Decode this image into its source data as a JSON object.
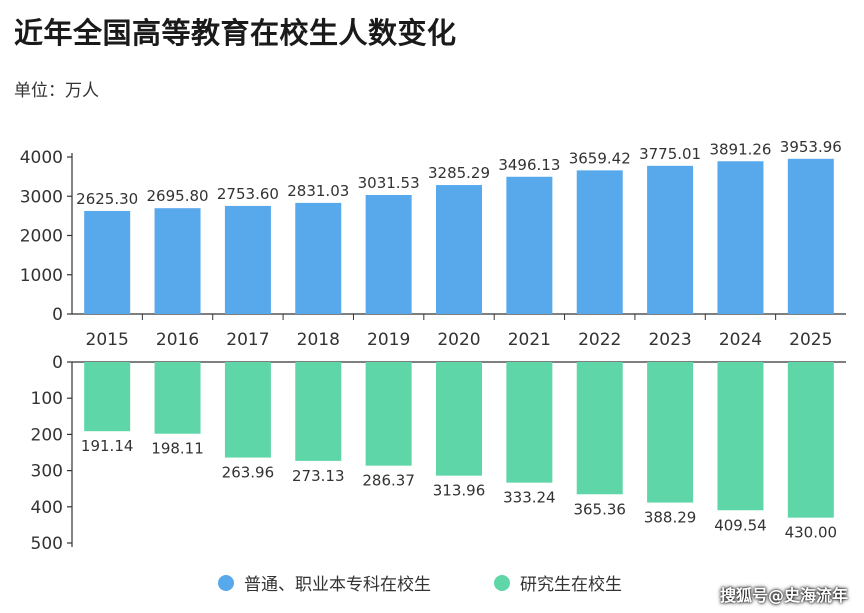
{
  "title": "近年全国高等教育在校生人数变化",
  "unit_label": "单位：万人",
  "credit": "搜狐号@史海流年",
  "colors": {
    "series1": "#58a8ec",
    "series2": "#5fd6a8",
    "axis": "#333333"
  },
  "chart_data": [
    {
      "type": "bar",
      "categories": [
        "2015",
        "2016",
        "2017",
        "2018",
        "2019",
        "2020",
        "2021",
        "2022",
        "2023",
        "2024",
        "2025"
      ],
      "series": [
        {
          "name": "普通、职业本专科在校生",
          "values": [
            2625.3,
            2695.8,
            2753.6,
            2831.03,
            3031.53,
            3285.29,
            3496.13,
            3659.42,
            3775.01,
            3891.26,
            3953.96
          ],
          "labels": [
            "2625.30",
            "2695.80",
            "2753.60",
            "2831.03",
            "3031.53",
            "3285.29",
            "3496.13",
            "3659.42",
            "3775.01",
            "3891.26",
            "3953.96"
          ]
        }
      ],
      "ylim": [
        0,
        4000
      ],
      "yticks": [
        "0",
        "1000",
        "2000",
        "3000",
        "4000"
      ],
      "grid": false
    },
    {
      "type": "bar",
      "orientation": "downward",
      "categories": [
        "2015",
        "2016",
        "2017",
        "2018",
        "2019",
        "2020",
        "2021",
        "2022",
        "2023",
        "2024",
        "2025"
      ],
      "series": [
        {
          "name": "研究生在校生",
          "values": [
            191.14,
            198.11,
            263.96,
            273.13,
            286.37,
            313.96,
            333.24,
            365.36,
            388.29,
            409.54,
            430.0
          ],
          "labels": [
            "191.14",
            "198.11",
            "263.96",
            "273.13",
            "286.37",
            "313.96",
            "333.24",
            "365.36",
            "388.29",
            "409.54",
            "430.00"
          ]
        }
      ],
      "ylim": [
        0,
        500
      ],
      "yticks": [
        "0",
        "100",
        "200",
        "300",
        "400",
        "500"
      ],
      "grid": false
    }
  ],
  "legend": [
    {
      "label": "普通、职业本专科在校生",
      "color": "#58a8ec"
    },
    {
      "label": "研究生在校生",
      "color": "#5fd6a8"
    }
  ]
}
